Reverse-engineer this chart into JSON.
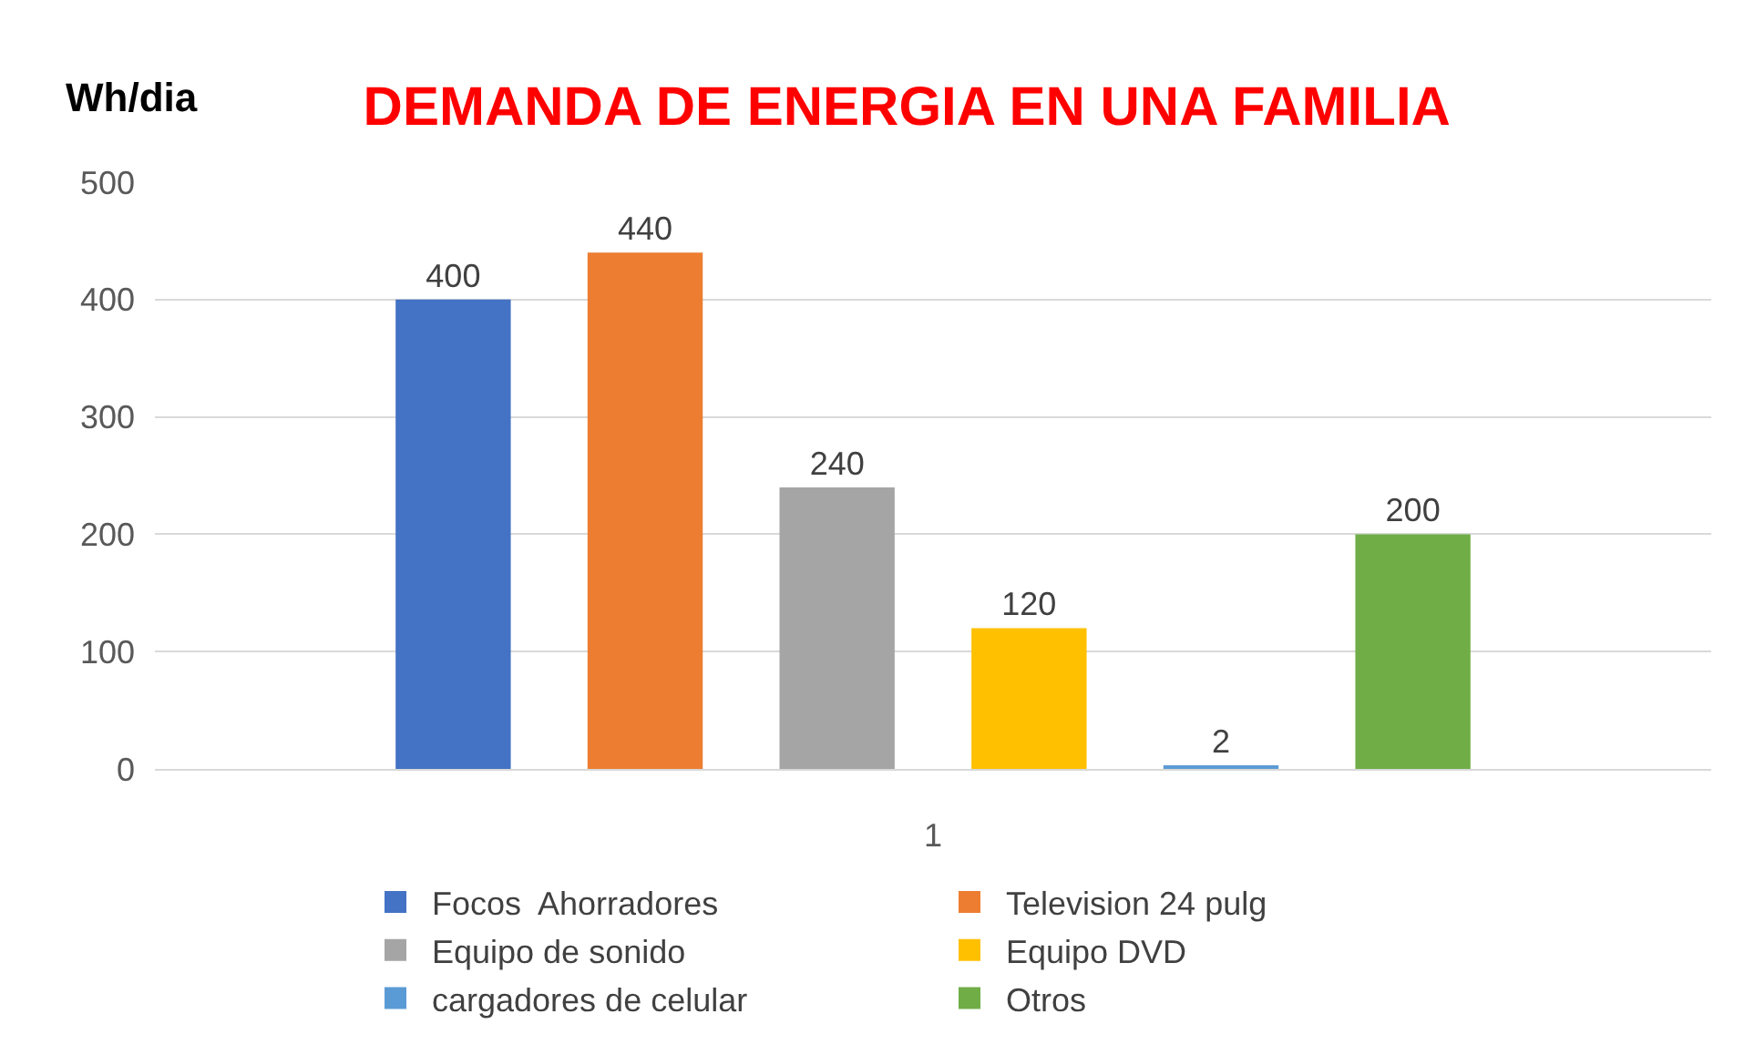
{
  "chart_data": {
    "type": "bar",
    "title": "DEMANDA DE ENERGIA EN UNA FAMILIA",
    "ylabel": "Wh/dia",
    "categories": [
      "1"
    ],
    "series": [
      {
        "name": "Focos  Ahorradores",
        "color": "#4472c4",
        "values": [
          400
        ]
      },
      {
        "name": "Television 24 pulg",
        "color": "#ed7d31",
        "values": [
          440
        ]
      },
      {
        "name": "Equipo de sonido",
        "color": "#a5a5a5",
        "values": [
          240
        ]
      },
      {
        "name": "Equipo DVD",
        "color": "#ffc000",
        "values": [
          120
        ]
      },
      {
        "name": "cargadores de celular",
        "color": "#5b9bd5",
        "values": [
          2
        ]
      },
      {
        "name": "Otros",
        "color": "#70ad47",
        "values": [
          200
        ]
      }
    ],
    "ylim": [
      0,
      500
    ],
    "yticks": [
      0,
      100,
      200,
      300,
      400,
      500
    ],
    "grid": "y",
    "legend": "bottom",
    "data_labels": true
  }
}
